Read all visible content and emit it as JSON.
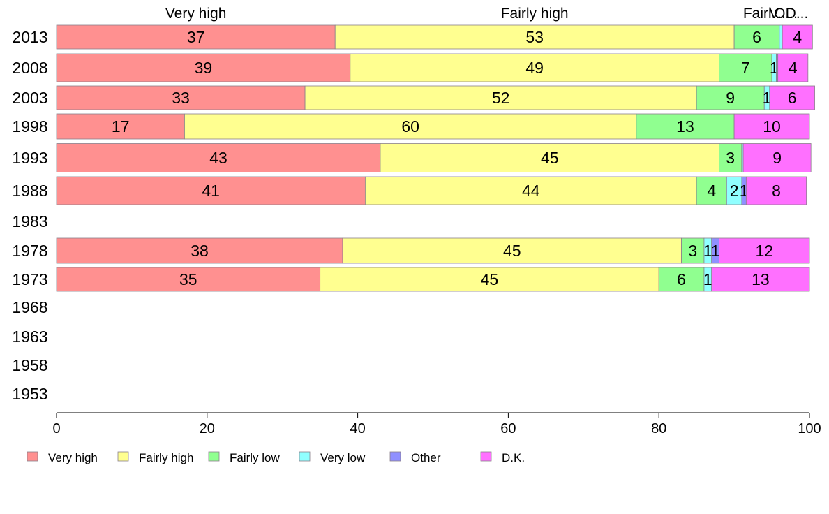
{
  "chart_data": {
    "type": "bar",
    "orientation": "horizontal",
    "stacked": true,
    "categories": [
      "2013",
      "2008",
      "2003",
      "1998",
      "1993",
      "1988",
      "1983",
      "1978",
      "1973",
      "1968",
      "1963",
      "1958",
      "1953"
    ],
    "series": [
      {
        "name": "Very high",
        "color": "#ff9090",
        "values": [
          37,
          39,
          33,
          17,
          43,
          41,
          null,
          38,
          35,
          null,
          null,
          null,
          null
        ],
        "labels": [
          "37",
          "39",
          "33",
          "17",
          "43",
          "41",
          "",
          "38",
          "35",
          "",
          "",
          "",
          ""
        ]
      },
      {
        "name": "Fairly high",
        "color": "#ffff90",
        "values": [
          53,
          49,
          52,
          60,
          45,
          44,
          null,
          45,
          45,
          null,
          null,
          null,
          null
        ],
        "labels": [
          "53",
          "49",
          "52",
          "60",
          "45",
          "44",
          "",
          "45",
          "45",
          "",
          "",
          "",
          ""
        ]
      },
      {
        "name": "Fairly low",
        "color": "#90ff90",
        "values": [
          6,
          7,
          9,
          13,
          3,
          4,
          null,
          3,
          6,
          null,
          null,
          null,
          null
        ],
        "labels": [
          "6",
          "7",
          "9",
          "13",
          "3",
          "4",
          "",
          "3",
          "6",
          "",
          "",
          "",
          ""
        ]
      },
      {
        "name": "Very low",
        "color": "#90ffff",
        "values": [
          0.4,
          0.6,
          0.7,
          0,
          0.2,
          2,
          null,
          1,
          1,
          null,
          null,
          null,
          null
        ],
        "labels": [
          "",
          "1",
          "1",
          "",
          "",
          "2",
          "",
          "1",
          "1",
          "",
          "",
          "",
          ""
        ]
      },
      {
        "name": "Other",
        "color": "#9090ff",
        "values": [
          0,
          0.2,
          0,
          0,
          0,
          0.6,
          null,
          1,
          0,
          null,
          null,
          null,
          null
        ],
        "labels": [
          "",
          "",
          "",
          "",
          "",
          "1",
          "",
          "1",
          "",
          "",
          "",
          "",
          ""
        ]
      },
      {
        "name": "D.K.",
        "color": "#ff70ff",
        "values": [
          4,
          4,
          6,
          10,
          9,
          8,
          null,
          12,
          13,
          null,
          null,
          null,
          null
        ],
        "labels": [
          "4",
          "4",
          "6",
          "10",
          "9",
          "8",
          "",
          "12",
          "13",
          "",
          "",
          "",
          ""
        ]
      }
    ],
    "top_labels": [
      "Very high",
      "Fairly high",
      "Fairl...",
      "V...",
      "O...",
      "D..."
    ],
    "xlim": [
      0,
      100
    ],
    "xticks": [
      0,
      20,
      40,
      60,
      80,
      100
    ],
    "grid": false,
    "legend_position": "bottom"
  }
}
